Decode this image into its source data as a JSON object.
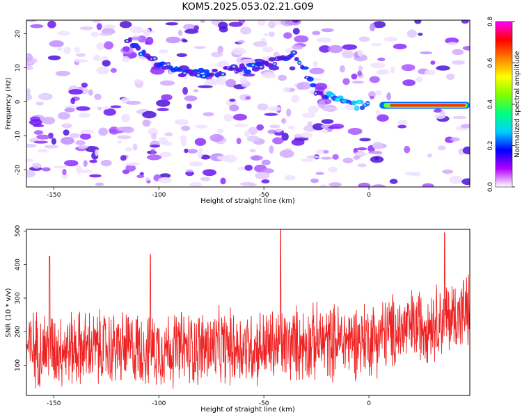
{
  "title": "KOM5.2025.053.02.21.G09",
  "chart_data": [
    {
      "type": "heatmap",
      "xlabel": "Height of straight line (km)",
      "ylabel": "Frequency (Hz)",
      "xlim": [
        -163,
        48
      ],
      "ylim": [
        -25,
        24
      ],
      "x_ticks": [
        -150,
        -100,
        -50,
        0
      ],
      "y_ticks": [
        -20,
        -10,
        0,
        10,
        20
      ],
      "colorbar": {
        "label": "Normalized spectral amplitude",
        "range": [
          0.0,
          0.8
        ],
        "ticks": [
          0.0,
          0.2,
          0.4,
          0.6,
          0.8
        ],
        "colors": [
          "#ffffff",
          "#b400ff",
          "#0000ff",
          "#00d0ff",
          "#00ff80",
          "#80ff00",
          "#ffff00",
          "#ff8000",
          "#ff0000",
          "#ff00ff"
        ]
      },
      "ridge": {
        "description_points_x": [
          -115,
          -100,
          -85,
          -70,
          -55,
          -45,
          -35,
          -25,
          -15,
          -8,
          0,
          10,
          48
        ],
        "description_points_y": [
          18,
          11,
          8,
          9,
          10,
          12,
          14,
          3,
          1,
          -1,
          -1,
          -1,
          -1
        ],
        "tail_amplitude": 0.75
      }
    },
    {
      "type": "line",
      "xlabel": "Height of straight line (km)",
      "ylabel": "SNR (10 * v/v)",
      "xlim": [
        -163,
        48
      ],
      "ylim": [
        10,
        505
      ],
      "x_ticks": [
        -150,
        -100,
        -50,
        0
      ],
      "y_ticks": [
        100,
        200,
        300,
        400,
        500
      ],
      "series_color": "#ee2222",
      "baseline": [
        {
          "x": -163,
          "y": 150
        },
        {
          "x": -100,
          "y": 150
        },
        {
          "x": -50,
          "y": 155
        },
        {
          "x": 0,
          "y": 180
        },
        {
          "x": 48,
          "y": 260
        }
      ],
      "noise_amplitude": 110,
      "peaks": [
        {
          "x": -42,
          "y": 505
        },
        {
          "x": 36,
          "y": 495
        },
        {
          "x": -104,
          "y": 430
        },
        {
          "x": -152,
          "y": 425
        }
      ]
    }
  ]
}
